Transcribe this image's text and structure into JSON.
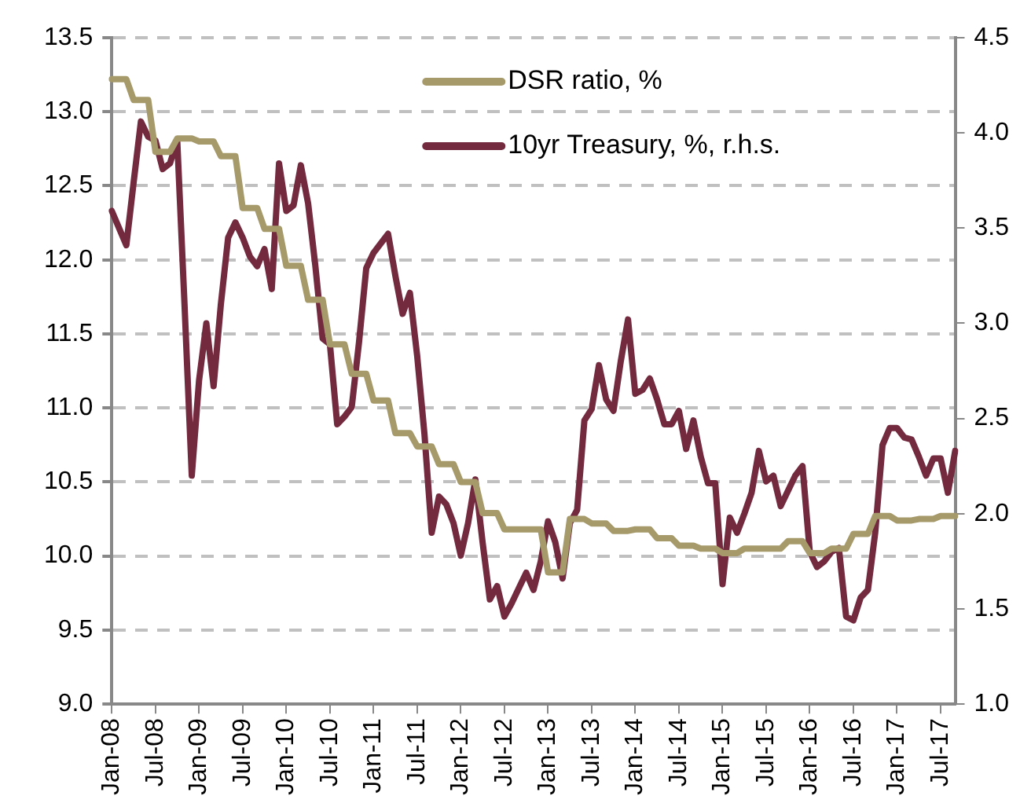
{
  "chart_data": {
    "type": "line",
    "categories": [
      "Jan-08",
      null,
      null,
      null,
      null,
      null,
      "Jul-08",
      null,
      null,
      null,
      null,
      null,
      "Jan-09",
      null,
      null,
      null,
      null,
      null,
      "Jul-09",
      null,
      null,
      null,
      null,
      null,
      "Jan-10",
      null,
      null,
      null,
      null,
      null,
      "Jul-10",
      null,
      null,
      null,
      null,
      null,
      "Jan-11",
      null,
      null,
      null,
      null,
      null,
      "Jul-11",
      null,
      null,
      null,
      null,
      null,
      "Jan-12",
      null,
      null,
      null,
      null,
      null,
      "Jul-12",
      null,
      null,
      null,
      null,
      null,
      "Jan-13",
      null,
      null,
      null,
      null,
      null,
      "Jul-13",
      null,
      null,
      null,
      null,
      null,
      "Jan-14",
      null,
      null,
      null,
      null,
      null,
      "Jul-14",
      null,
      null,
      null,
      null,
      null,
      "Jan-15",
      null,
      null,
      null,
      null,
      null,
      "Jul-15",
      null,
      null,
      null,
      null,
      null,
      "Jan-16",
      null,
      null,
      null,
      null,
      null,
      "Jul-16",
      null,
      null,
      null,
      null,
      null,
      "Jan-17",
      null,
      null,
      null,
      null,
      null,
      "Jul-17",
      null,
      null
    ],
    "series": [
      {
        "name": "DSR ratio, %",
        "color": "#a69a6b",
        "values": [
          13.22,
          13.22,
          13.22,
          13.08,
          13.08,
          13.08,
          12.73,
          12.73,
          12.73,
          12.82,
          12.82,
          12.82,
          12.8,
          12.8,
          12.8,
          12.7,
          12.7,
          12.7,
          12.35,
          12.35,
          12.35,
          12.21,
          12.21,
          12.21,
          11.96,
          11.96,
          11.96,
          11.73,
          11.73,
          11.73,
          11.43,
          11.43,
          11.43,
          11.23,
          11.23,
          11.23,
          11.05,
          11.05,
          11.05,
          10.83,
          10.83,
          10.83,
          10.74,
          10.74,
          10.74,
          10.62,
          10.62,
          10.62,
          10.5,
          10.5,
          10.5,
          10.29,
          10.29,
          10.29,
          10.18,
          10.18,
          10.18,
          10.18,
          10.18,
          10.18,
          9.89,
          9.89,
          9.89,
          10.25,
          10.25,
          10.25,
          10.22,
          10.22,
          10.22,
          10.17,
          10.17,
          10.17,
          10.18,
          10.18,
          10.18,
          10.12,
          10.12,
          10.12,
          10.07,
          10.07,
          10.07,
          10.05,
          10.05,
          10.05,
          10.02,
          10.02,
          10.02,
          10.05,
          10.05,
          10.05,
          10.05,
          10.05,
          10.05,
          10.1,
          10.1,
          10.1,
          10.02,
          10.02,
          10.02,
          10.05,
          10.05,
          10.05,
          10.15,
          10.15,
          10.15,
          10.27,
          10.27,
          10.27,
          10.24,
          10.24,
          10.24,
          10.25,
          10.25,
          10.25,
          10.27,
          10.27,
          10.27
        ]
      },
      {
        "name": "10yr Treasury, %, r.h.s.",
        "color": "#732a3f",
        "axis": "y2",
        "values": [
          3.59,
          3.5,
          3.41,
          3.74,
          4.06,
          3.98,
          3.96,
          3.81,
          3.84,
          3.96,
          3.1,
          2.2,
          2.7,
          3.0,
          2.67,
          3.1,
          3.45,
          3.53,
          3.45,
          3.35,
          3.3,
          3.39,
          3.18,
          3.84,
          3.59,
          3.62,
          3.83,
          3.63,
          3.3,
          2.92,
          2.89,
          2.47,
          2.51,
          2.56,
          2.9,
          3.29,
          3.37,
          3.42,
          3.47,
          3.25,
          3.05,
          3.16,
          2.83,
          2.42,
          1.9,
          2.09,
          2.05,
          1.95,
          1.78,
          1.95,
          2.18,
          1.85,
          1.55,
          1.62,
          1.46,
          1.53,
          1.61,
          1.69,
          1.6,
          1.75,
          1.96,
          1.85,
          1.66,
          1.95,
          2.02,
          2.49,
          2.55,
          2.78,
          2.6,
          2.54,
          2.8,
          3.02,
          2.63,
          2.65,
          2.71,
          2.6,
          2.47,
          2.47,
          2.54,
          2.34,
          2.49,
          2.3,
          2.16,
          2.16,
          1.63,
          1.98,
          1.9,
          2.0,
          2.11,
          2.33,
          2.17,
          2.2,
          2.04,
          2.12,
          2.2,
          2.25,
          1.8,
          1.72,
          1.75,
          1.8,
          1.82,
          1.46,
          1.44,
          1.56,
          1.6,
          1.9,
          2.36,
          2.45,
          2.45,
          2.4,
          2.39,
          2.3,
          2.2,
          2.29,
          2.29,
          2.11,
          2.33
        ]
      }
    ],
    "ylim": [
      9,
      13.5
    ],
    "yticks": [
      {
        "value": 9,
        "label": "9.0"
      },
      9.5,
      {
        "value": 10,
        "label": "10.0"
      },
      10.5,
      {
        "value": 11,
        "label": "11.0"
      },
      11.5,
      {
        "value": 12,
        "label": "12.0"
      },
      12.5,
      {
        "value": 13,
        "label": "13.0"
      },
      13.5
    ],
    "y2lim": [
      1,
      4.5
    ],
    "y2ticks": [
      {
        "value": 1,
        "label": "1.0"
      },
      1.5,
      {
        "value": 2,
        "label": "2.0"
      },
      2.5,
      {
        "value": 3,
        "label": "3.0"
      },
      3.5,
      {
        "value": 4,
        "label": "4.0"
      },
      4.5
    ],
    "grid": "y",
    "legend": "top right",
    "marker": "none",
    "line_style": "solid"
  }
}
